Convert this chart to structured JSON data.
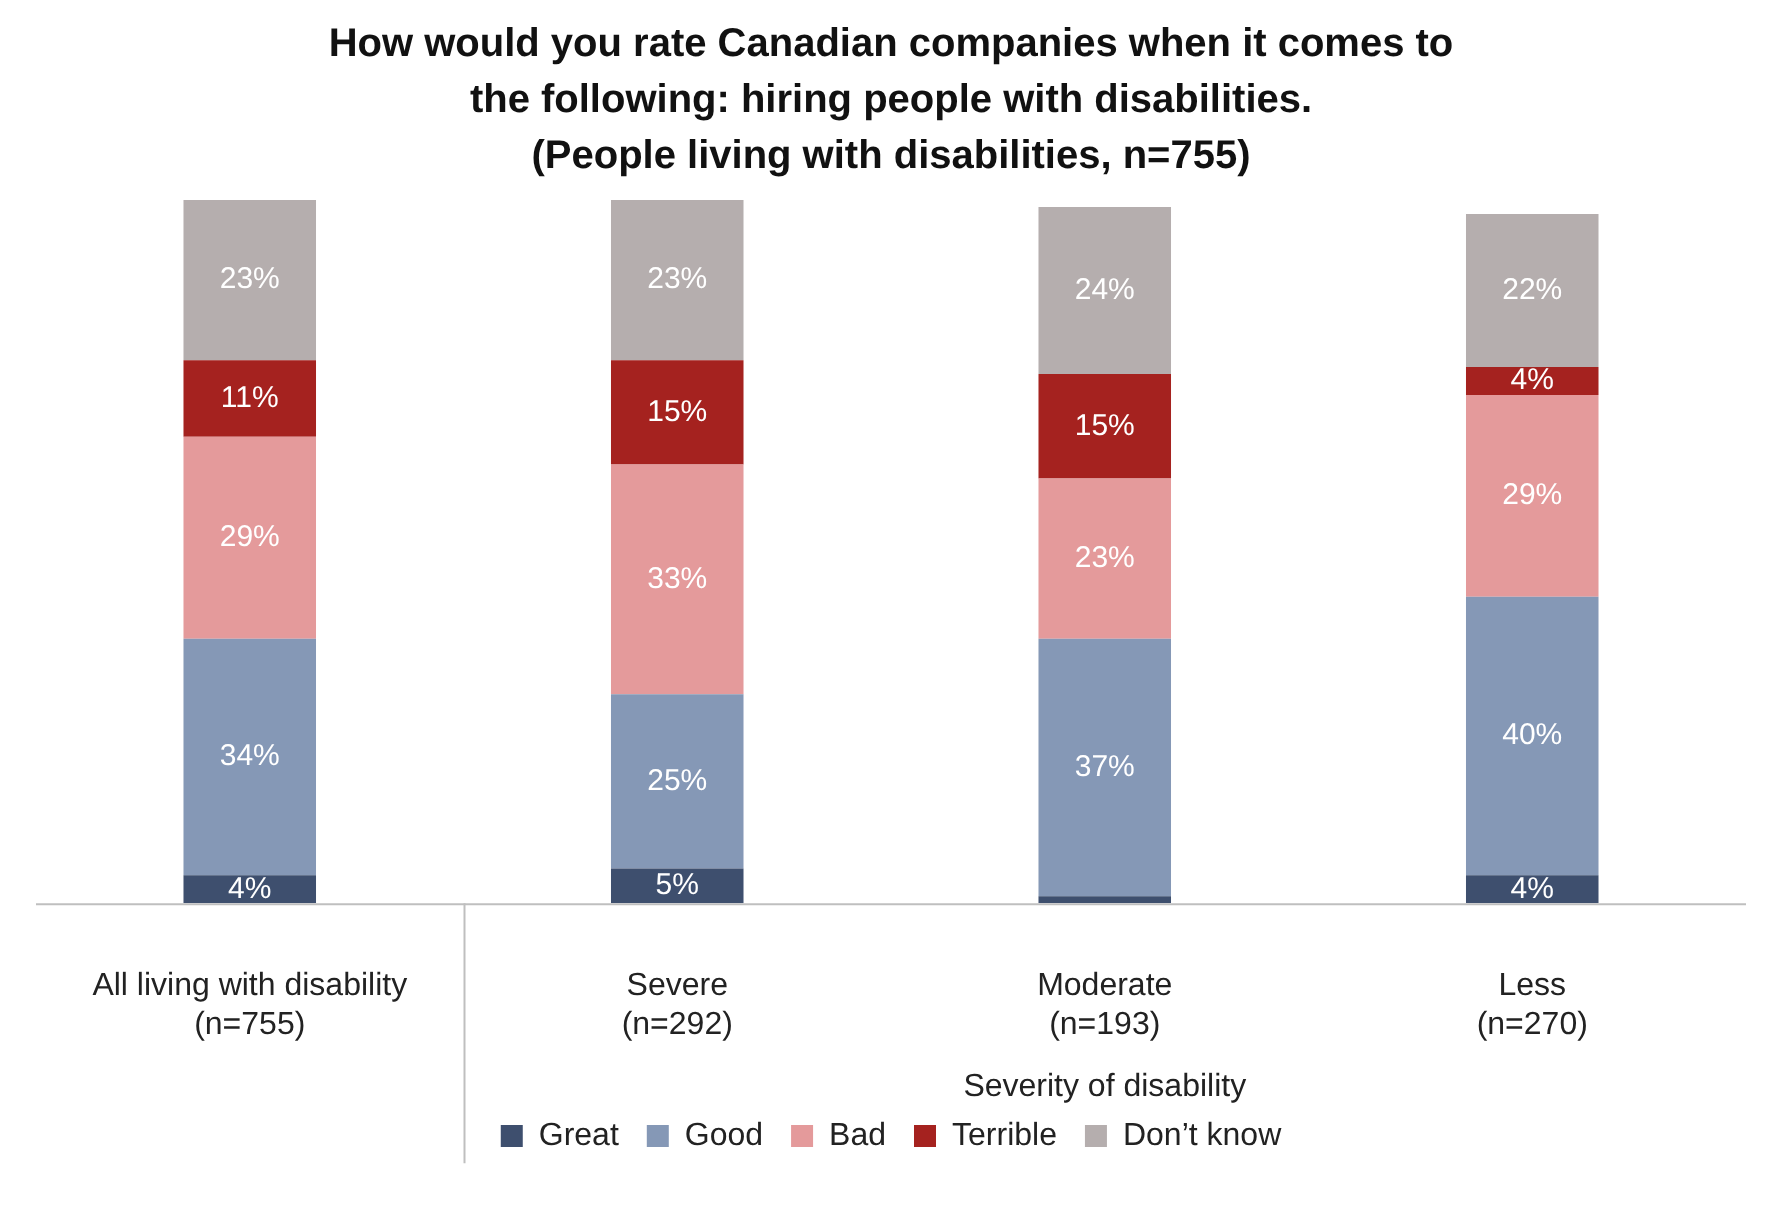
{
  "chart_data": {
    "type": "bar",
    "stacked": true,
    "title": "How would you rate Canadian companies when it comes to the following: hiring people with disabilities.",
    "subtitle": "(People living with disabilities, n=755)",
    "categories": [
      "All living with disability (n=755)",
      "Severe (n=292)",
      "Moderate (n=193)",
      "Less (n=270)"
    ],
    "series": [
      {
        "name": "Great",
        "color": "#3e4f6e",
        "values": [
          4,
          5,
          1,
          4
        ],
        "value_labels": [
          "4%",
          "5%",
          null,
          "4%"
        ]
      },
      {
        "name": "Good",
        "color": "#8598b6",
        "values": [
          34,
          25,
          37,
          40
        ],
        "value_labels": [
          "34%",
          "25%",
          "37%",
          "40%"
        ]
      },
      {
        "name": "Bad",
        "color": "#e49a9b",
        "values": [
          29,
          33,
          23,
          29
        ],
        "value_labels": [
          "29%",
          "33%",
          "23%",
          "29%"
        ]
      },
      {
        "name": "Terrible",
        "color": "#a5221f",
        "values": [
          11,
          15,
          15,
          4
        ],
        "value_labels": [
          "11%",
          "15%",
          "15%",
          "4%"
        ]
      },
      {
        "name": "Don’t know",
        "color": "#b5aeae",
        "values": [
          23,
          23,
          24,
          22
        ],
        "value_labels": [
          "23%",
          "23%",
          "24%",
          "22%"
        ]
      }
    ],
    "annotations": [
      "Severity of disability"
    ],
    "legend": "bottom"
  }
}
